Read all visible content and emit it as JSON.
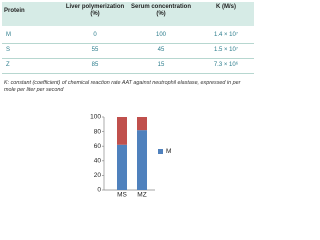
{
  "table": {
    "columns": [
      "Protein",
      "Liver polymerization (%)",
      "Serum concentration (%)",
      "K (M/s)"
    ],
    "rows": [
      [
        "M",
        "0",
        "100",
        "1.4 × 10⁷"
      ],
      [
        "S",
        "55",
        "45",
        "1.5 × 10⁷"
      ],
      [
        "Z",
        "85",
        "15",
        "7.3 × 10⁶"
      ]
    ]
  },
  "footnote": "K: constant (coefficient) of chemical reaction rate AAT against neutrophil elastase, expressed in per mole per liter per second",
  "chart_data": {
    "type": "bar",
    "stacked": true,
    "categories": [
      "MS",
      "MZ"
    ],
    "series": [
      {
        "name": "M",
        "color": "#4f81bd",
        "values": [
          62,
          82
        ]
      },
      {
        "color": "#c0504d",
        "values": [
          38,
          18
        ]
      }
    ],
    "ylim": [
      0,
      100
    ],
    "yticks": [
      0,
      20,
      40,
      60,
      80,
      100
    ]
  }
}
